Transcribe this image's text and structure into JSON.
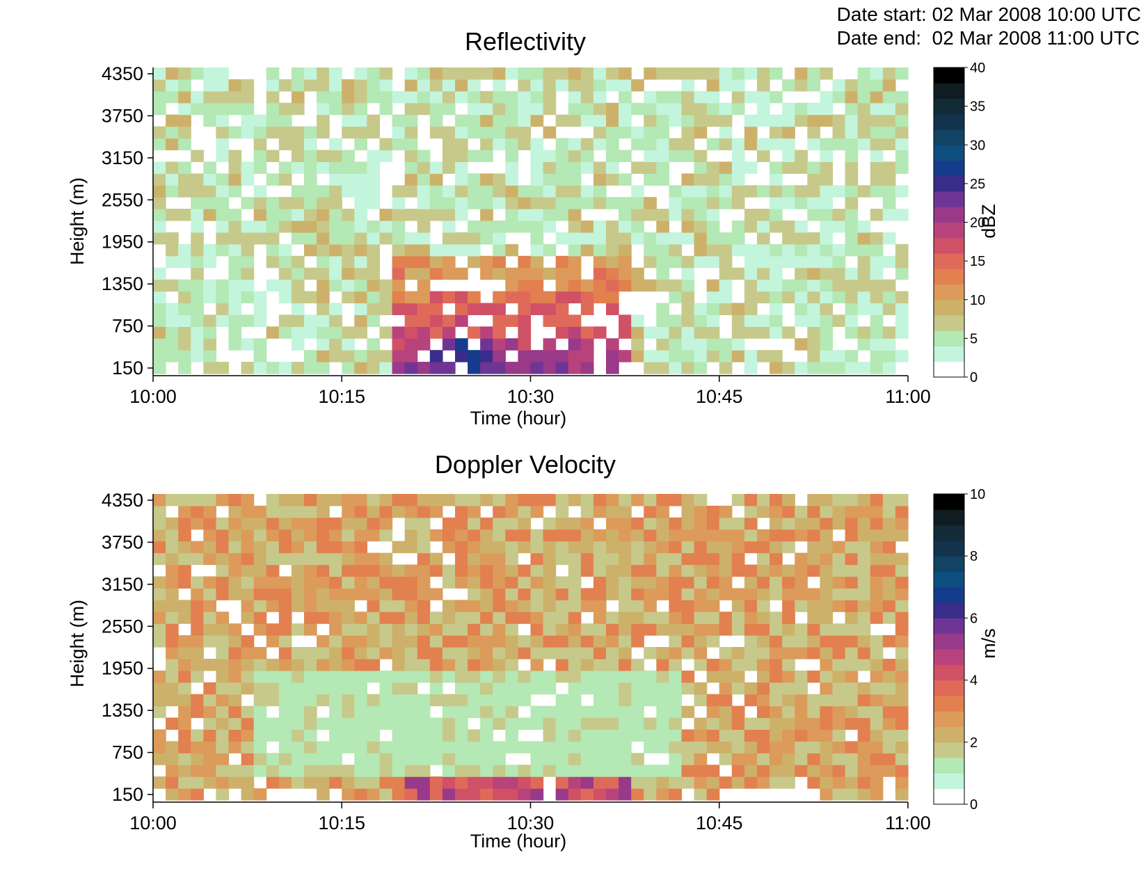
{
  "header": {
    "start_label": "Date start:",
    "start_value": "02 Mar 2008 10:00 UTC",
    "end_label": "Date end:",
    "end_value": "02 Mar 2008 11:00 UTC"
  },
  "colormap": [
    "#ffffff",
    "#c3f5dc",
    "#b4e8b4",
    "#c7c98a",
    "#cdb16a",
    "#dc9b5a",
    "#e28050",
    "#e06a5a",
    "#d05066",
    "#b8437c",
    "#99398a",
    "#6e3594",
    "#3a2d8a",
    "#153c8c",
    "#0e4f80",
    "#124264",
    "#13334c",
    "#132a37",
    "#0f1c22",
    "#000000"
  ],
  "chart_data": [
    {
      "type": "heatmap",
      "title": "Reflectivity",
      "xlabel": "Time (hour)",
      "ylabel": "Height (m)",
      "x_ticks": [
        "10:00",
        "10:15",
        "10:30",
        "10:45",
        "11:00"
      ],
      "x_range_minutes": [
        0,
        60
      ],
      "y_ticks": [
        150,
        750,
        1350,
        1950,
        2550,
        3150,
        3750,
        4350
      ],
      "y_range_m": [
        150,
        4350
      ],
      "colorbar_label": "dBZ",
      "colorbar_ticks": [
        0,
        5,
        10,
        15,
        20,
        25,
        30,
        35,
        40
      ],
      "colorbar_range": [
        0,
        40
      ],
      "cells": "60 time columns x 26 height rows (~1 min x 170 m bins); mostly 0-10 dBZ scattered clutter at all heights; convective core 10:19-10:38 below ~1700 m rising to 15-25 dBZ, peak ~30 dBZ near 10:23-10:25 at 150-600 m",
      "core": {
        "time_minutes": [
          19,
          38
        ],
        "top_height_m": 1700,
        "peak_dBZ": 30,
        "peak_time_minutes": 24,
        "peak_height_m": 400
      }
    },
    {
      "type": "heatmap",
      "title": "Doppler Velocity",
      "xlabel": "Time (hour)",
      "ylabel": "Height (m)",
      "x_ticks": [
        "10:00",
        "10:15",
        "10:30",
        "10:45",
        "11:00"
      ],
      "x_range_minutes": [
        0,
        60
      ],
      "y_ticks": [
        150,
        750,
        1350,
        1950,
        2550,
        3150,
        3750,
        4350
      ],
      "y_range_m": [
        150,
        4350
      ],
      "colorbar_label": "m/s",
      "colorbar_ticks": [
        0,
        2,
        4,
        6,
        8,
        10
      ],
      "colorbar_range": [
        0,
        10
      ],
      "cells": "60 time columns x 26 height rows; widespread 2-4 m/s, scattered 4-5 m/s; low-velocity region ~1-2 m/s 10:08-10:42 between ~500 and ~1900 m; strong 4-6 m/s band at the lowest levels 10:20-10:38",
      "core": {
        "time_minutes": [
          20,
          38
        ],
        "top_height_m": 500,
        "peak_ms": 6
      }
    }
  ]
}
